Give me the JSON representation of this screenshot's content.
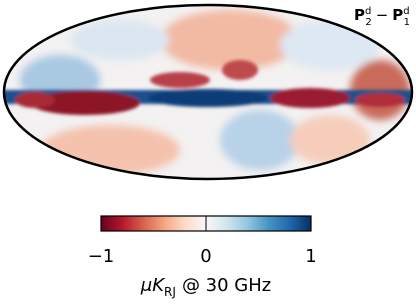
{
  "map": {
    "title": {
      "base_a": "P",
      "sup_a": "d",
      "sub_a": "2",
      "operator": "−",
      "base_b": "P",
      "sup_b": "d",
      "sub_b": "1"
    }
  },
  "colorbar": {
    "lim": [
      -1,
      1
    ],
    "ticks": [
      {
        "value": -1,
        "label": "−1"
      },
      {
        "value": 0,
        "label": "0"
      },
      {
        "value": 1,
        "label": "1"
      }
    ],
    "colors": [
      "#67001f",
      "#b2182b",
      "#d6604d",
      "#f4a582",
      "#fddbc7",
      "#f7f7f7",
      "#d1e5f0",
      "#92c5de",
      "#4393c3",
      "#2166ac",
      "#053061"
    ],
    "label": {
      "symbol": "μK",
      "subscript": "RJ",
      "rest": "@ 30 GHz"
    }
  }
}
